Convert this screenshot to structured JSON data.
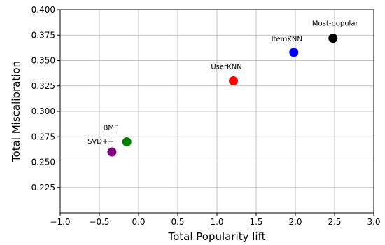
{
  "chart_data": {
    "type": "scatter",
    "title": "",
    "xlabel": "Total Popularity lift",
    "ylabel": "Total Miscalibration",
    "xlim": [
      -1.0,
      3.0
    ],
    "ylim": [
      0.2,
      0.4
    ],
    "xticks": [
      -1.0,
      -0.5,
      0.0,
      0.5,
      1.0,
      1.5,
      2.0,
      2.5,
      3.0
    ],
    "xtick_labels": [
      "−1.0",
      "−0.5",
      "0.0",
      "0.5",
      "1.0",
      "1.5",
      "2.0",
      "2.5",
      "3.0"
    ],
    "yticks": [
      0.225,
      0.25,
      0.275,
      0.3,
      0.325,
      0.35,
      0.375,
      0.4
    ],
    "ytick_labels": [
      "0.225",
      "0.250",
      "0.275",
      "0.300",
      "0.325",
      "0.350",
      "0.375",
      "0.400"
    ],
    "grid": true,
    "points": [
      {
        "label": "Most-popular",
        "x": 2.48,
        "y": 0.372,
        "color": "#000000"
      },
      {
        "label": "ItemKNN",
        "x": 1.98,
        "y": 0.358,
        "color": "#0000ff"
      },
      {
        "label": "UserKNN",
        "x": 1.21,
        "y": 0.33,
        "color": "#ff0000"
      },
      {
        "label": "BMF",
        "x": -0.15,
        "y": 0.27,
        "color": "#008000"
      },
      {
        "label": "SVD++",
        "x": -0.34,
        "y": 0.26,
        "color": "#800080"
      }
    ]
  }
}
